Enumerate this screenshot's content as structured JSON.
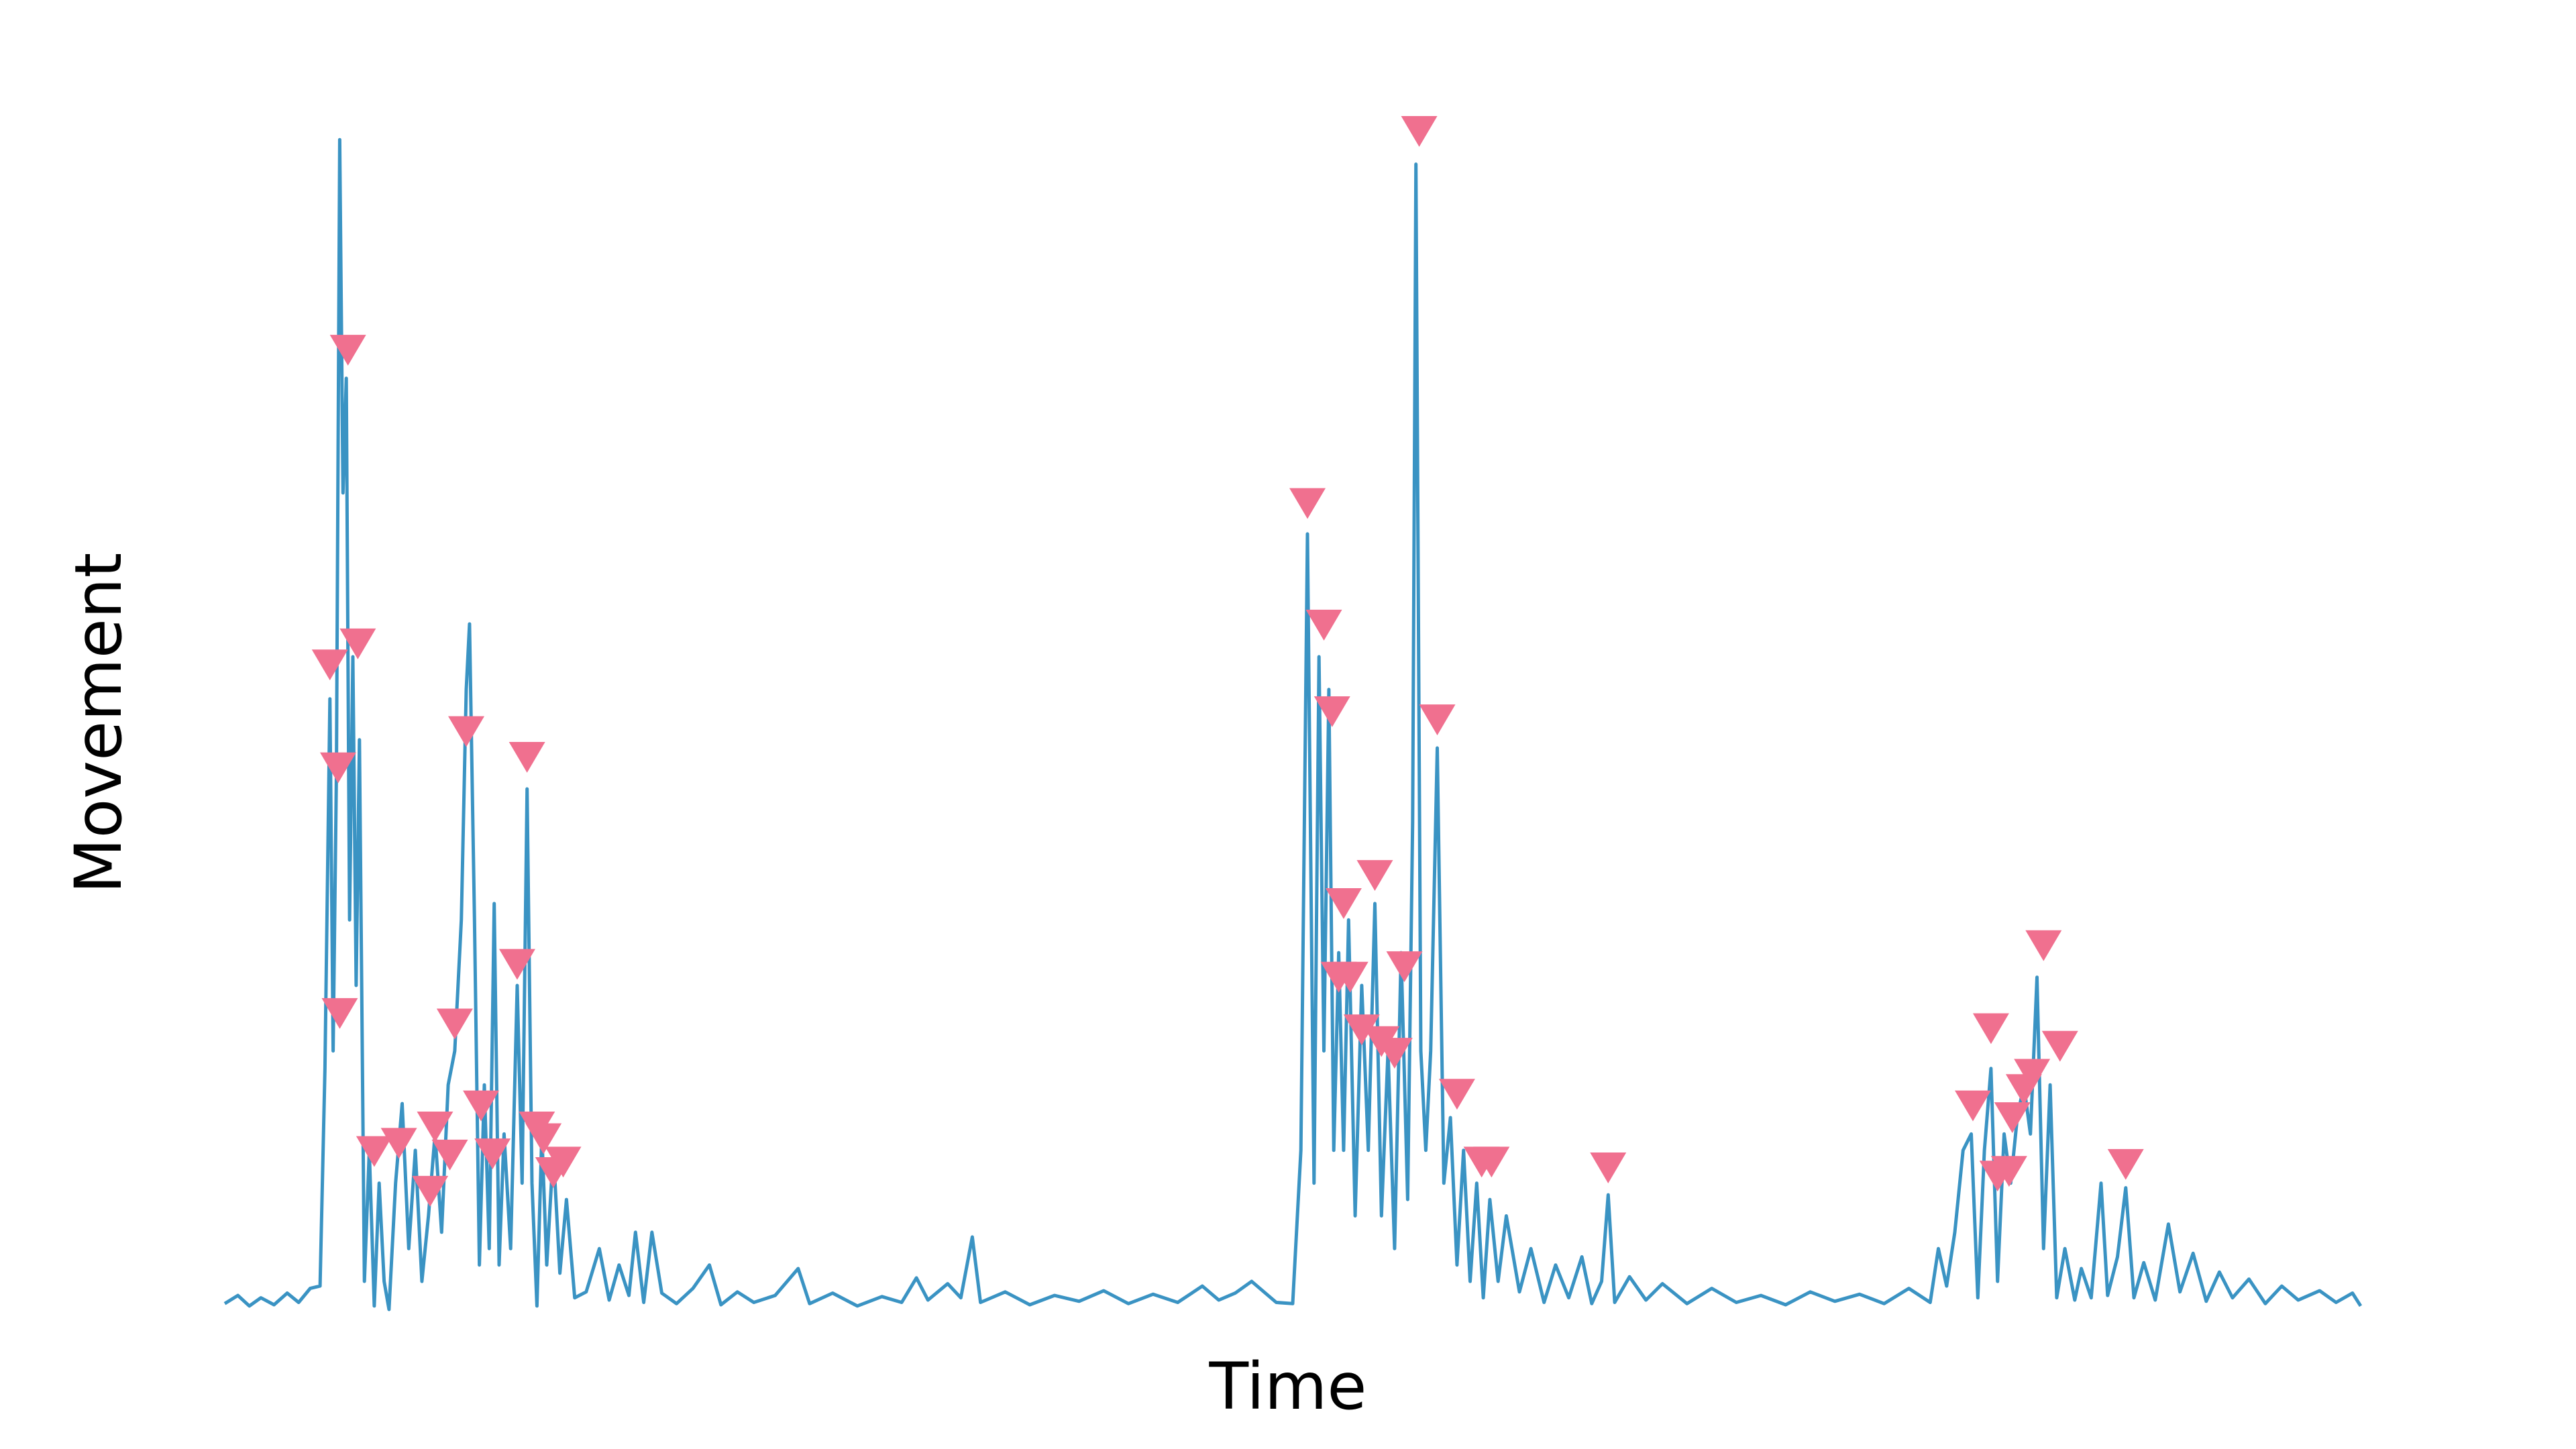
{
  "chart_data": {
    "type": "line",
    "xlabel": "Time",
    "ylabel": "Movement",
    "xlim": [
      0,
      1300
    ],
    "ylim": [
      0,
      105
    ],
    "color": "#3a93c3",
    "x": [
      0,
      8,
      15,
      22,
      30,
      38,
      45,
      52,
      58,
      61,
      64,
      66,
      68,
      70,
      72,
      74,
      76,
      78,
      80,
      82,
      85,
      88,
      91,
      94,
      97,
      100,
      104,
      108,
      112,
      116,
      120,
      124,
      128,
      132,
      136,
      140,
      144,
      147,
      149,
      152,
      155,
      158,
      161,
      164,
      167,
      170,
      174,
      178,
      181,
      184,
      187,
      190,
      193,
      196,
      200,
      204,
      208,
      213,
      220,
      228,
      234,
      240,
      246,
      250,
      255,
      260,
      266,
      275,
      285,
      295,
      302,
      312,
      322,
      335,
      349,
      356,
      370,
      385,
      400,
      412,
      421,
      428,
      440,
      448,
      455,
      460,
      475,
      490,
      505,
      520,
      535,
      550,
      565,
      580,
      595,
      605,
      615,
      625,
      640,
      650,
      655,
      659,
      663,
      666,
      669,
      672,
      675,
      678,
      681,
      684,
      688,
      692,
      696,
      700,
      704,
      708,
      712,
      716,
      720,
      723,
      725,
      728,
      731,
      734,
      738,
      742,
      746,
      750,
      754,
      758,
      762,
      766,
      770,
      775,
      780,
      788,
      795,
      803,
      810,
      818,
      826,
      832,
      838,
      842,
      846,
      855,
      865,
      875,
      890,
      905,
      920,
      935,
      950,
      965,
      980,
      995,
      1010,
      1025,
      1038,
      1043,
      1048,
      1053,
      1058,
      1063,
      1067,
      1071,
      1075,
      1079,
      1083,
      1087,
      1091,
      1095,
      1099,
      1103,
      1107,
      1111,
      1115,
      1120,
      1126,
      1130,
      1136,
      1142,
      1146,
      1152,
      1157,
      1162,
      1168,
      1175,
      1183,
      1190,
      1198,
      1206,
      1214,
      1222,
      1232,
      1242,
      1252,
      1262,
      1275,
      1285,
      1295,
      1300
    ],
    "values": [
      0.5,
      1.2,
      0.3,
      1.0,
      0.4,
      1.4,
      0.6,
      1.8,
      2.0,
      20.6,
      52.2,
      22.1,
      45.9,
      100,
      69.8,
      79.6,
      33.3,
      55.8,
      27.7,
      48.7,
      2.4,
      13.6,
      0.3,
      10.8,
      2.4,
      0,
      10.8,
      17.6,
      5.2,
      13.6,
      2.4,
      8,
      15,
      6.6,
      19.2,
      22.1,
      33.3,
      53,
      58.6,
      33.3,
      3.8,
      19.2,
      5.2,
      34.7,
      3.8,
      15,
      5.2,
      27.7,
      10.8,
      44.5,
      10.8,
      0.3,
      15,
      3.8,
      13.6,
      3.1,
      9.4,
      1,
      1.5,
      5.2,
      0.8,
      3.8,
      1.2,
      6.6,
      0.6,
      6.6,
      1.4,
      0.5,
      1.8,
      3.8,
      0.4,
      1.5,
      0.6,
      1.2,
      3.5,
      0.5,
      1.4,
      0.3,
      1.1,
      0.6,
      2.7,
      0.8,
      2.2,
      1.0,
      6.2,
      0.6,
      1.5,
      0.4,
      1.2,
      0.7,
      1.6,
      0.5,
      1.3,
      0.6,
      2.0,
      0.8,
      1.4,
      2.4,
      0.6,
      0.5,
      13.6,
      66.3,
      10.8,
      55.8,
      22.1,
      53,
      13.6,
      30.5,
      13.6,
      33.3,
      8,
      27.7,
      13.6,
      34.7,
      8,
      22.1,
      5.2,
      30.5,
      9.4,
      41.7,
      97.9,
      22.1,
      13.6,
      22.1,
      48,
      10.8,
      16.4,
      3.8,
      13.6,
      2.4,
      10.8,
      1,
      9.4,
      2.4,
      8,
      1.5,
      5.2,
      0.6,
      3.8,
      1.0,
      4.5,
      0.5,
      2.4,
      9.8,
      0.6,
      2.8,
      0.8,
      2.2,
      0.5,
      1.8,
      0.6,
      1.2,
      0.4,
      1.5,
      0.7,
      1.3,
      0.5,
      1.8,
      0.6,
      5.2,
      2.0,
      6.6,
      13.6,
      15,
      1,
      13.6,
      20.6,
      2.4,
      15,
      10.8,
      16.4,
      19.2,
      15,
      28.4,
      5.2,
      19.2,
      1,
      5.2,
      0.8,
      3.5,
      1.0,
      10.8,
      1.2,
      4.5,
      10.4,
      1.0,
      4.0,
      0.8,
      7.3,
      1.5,
      4.8,
      0.7,
      3.2,
      1.0,
      2.6,
      0.5,
      2.0,
      0.8,
      1.6,
      0.6,
      1.4,
      0.3
    ],
    "markers": {
      "color": "#f0708f",
      "x": [
        64,
        69,
        70,
        75,
        81,
        91,
        106,
        125,
        128,
        137,
        140,
        147,
        156,
        163,
        178,
        184,
        190,
        194,
        200,
        206,
        659,
        669,
        674,
        681,
        678,
        685,
        700,
        692,
        704,
        712,
        718,
        727,
        738,
        750,
        765,
        771,
        842,
        1064,
        1075,
        1079,
        1086,
        1088,
        1095,
        1100,
        1107,
        1117,
        1157
      ],
      "values": [
        55.1,
        46.3,
        25.3,
        82.0,
        56.9,
        13.5,
        14.2,
        10.1,
        15.6,
        13.2,
        24.4,
        49.4,
        17.4,
        13.3,
        29.5,
        47.2,
        15.6,
        14.6,
        11.7,
        12.6,
        68.9,
        58.5,
        51.1,
        34.7,
        28.4,
        28.4,
        37.1,
        23.9,
        22.9,
        21.9,
        29.3,
        100.7,
        50.4,
        18.4,
        12.6,
        12.6,
        12.1,
        17.4,
        24.0,
        11.4,
        11.8,
        16.4,
        18.8,
        20.1,
        31.1,
        22.5,
        12.4
      ]
    }
  }
}
